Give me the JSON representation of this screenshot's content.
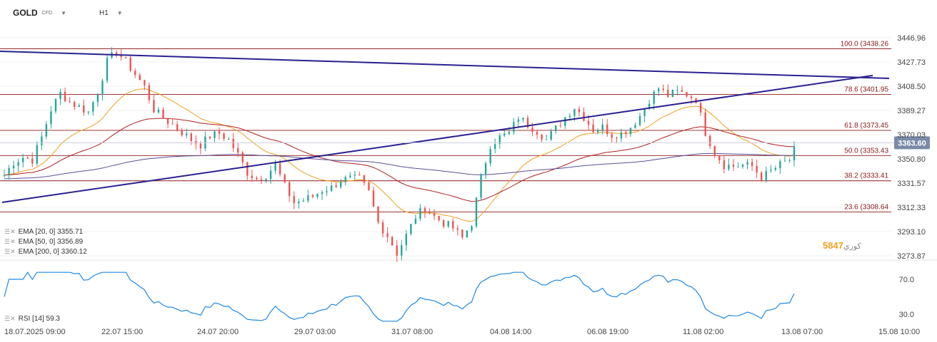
{
  "header": {
    "symbol": "GOLD",
    "type": "CFD",
    "timeframe": "H1"
  },
  "indicators": [
    {
      "label": "EMA [20, 0] 3355.71",
      "color": "#f0a020"
    },
    {
      "label": "EMA [50, 0] 3356.89",
      "color": "#b02020"
    },
    {
      "label": "EMA [200, 0] 3360.12",
      "color": "#5a4f9a"
    }
  ],
  "rsi_label": "RSI [14] 59.3",
  "watermark": {
    "part1": "58",
    "part2": "47",
    "glyph": "كوري"
  },
  "colors": {
    "fib": "#8b1a1a",
    "trend": "#2a2090",
    "price_tag": "#7a8aa8",
    "up": "#26a69a",
    "down": "#ef5350",
    "axis_text": "#444"
  },
  "chart_data": {
    "type": "candlestick",
    "price_axis": {
      "min": 3270,
      "max": 3450,
      "ticks": [
        "3446.96",
        "3427.73",
        "3408.50",
        "3389.27",
        "3370.03",
        "3350.80",
        "3331.57",
        "3312.33",
        "3293.10",
        "3273.87"
      ]
    },
    "last_price": "3363.60",
    "fib_levels": [
      {
        "label": "100.0 (3438.26",
        "value": 3438.26
      },
      {
        "label": "78.6 (3401.95",
        "value": 3401.95
      },
      {
        "label": "61.8 (3373.45",
        "value": 3373.45
      },
      {
        "label": "50.0 (3353.43",
        "value": 3353.43
      },
      {
        "label": "38.2 (3333.41",
        "value": 3333.41
      },
      {
        "label": "23.6 (3308.64",
        "value": 3308.64
      }
    ],
    "rsi_axis": {
      "ticks": [
        "70.0",
        "30.0"
      ]
    },
    "x_ticks": [
      "18.07.2025 09:00",
      "22.07 15:00",
      "24.07 20:00",
      "29.07 03:00",
      "31.07 08:00",
      "04.08 14:00",
      "06.08 19:00",
      "11.08 02:00",
      "13.08 07:00",
      "15.08 10:00"
    ],
    "close_path": [
      3338,
      3348,
      3352,
      3350,
      3368,
      3390,
      3403,
      3396,
      3392,
      3388,
      3404,
      3428,
      3436,
      3428,
      3418,
      3408,
      3390,
      3383,
      3378,
      3372,
      3366,
      3362,
      3369,
      3371,
      3366,
      3354,
      3340,
      3335,
      3338,
      3346,
      3329,
      3316,
      3318,
      3321,
      3326,
      3328,
      3334,
      3335,
      3335,
      3324,
      3300,
      3290,
      3276,
      3290,
      3305,
      3312,
      3305,
      3300,
      3296,
      3288,
      3300,
      3336,
      3362,
      3368,
      3371,
      3384,
      3378,
      3373,
      3366,
      3375,
      3384,
      3392,
      3384,
      3374,
      3376,
      3370,
      3371,
      3376,
      3385,
      3398,
      3407,
      3401,
      3404,
      3402,
      3398,
      3372,
      3356,
      3346,
      3345,
      3346,
      3345,
      3336,
      3341,
      3346,
      3350,
      3365
    ]
  }
}
